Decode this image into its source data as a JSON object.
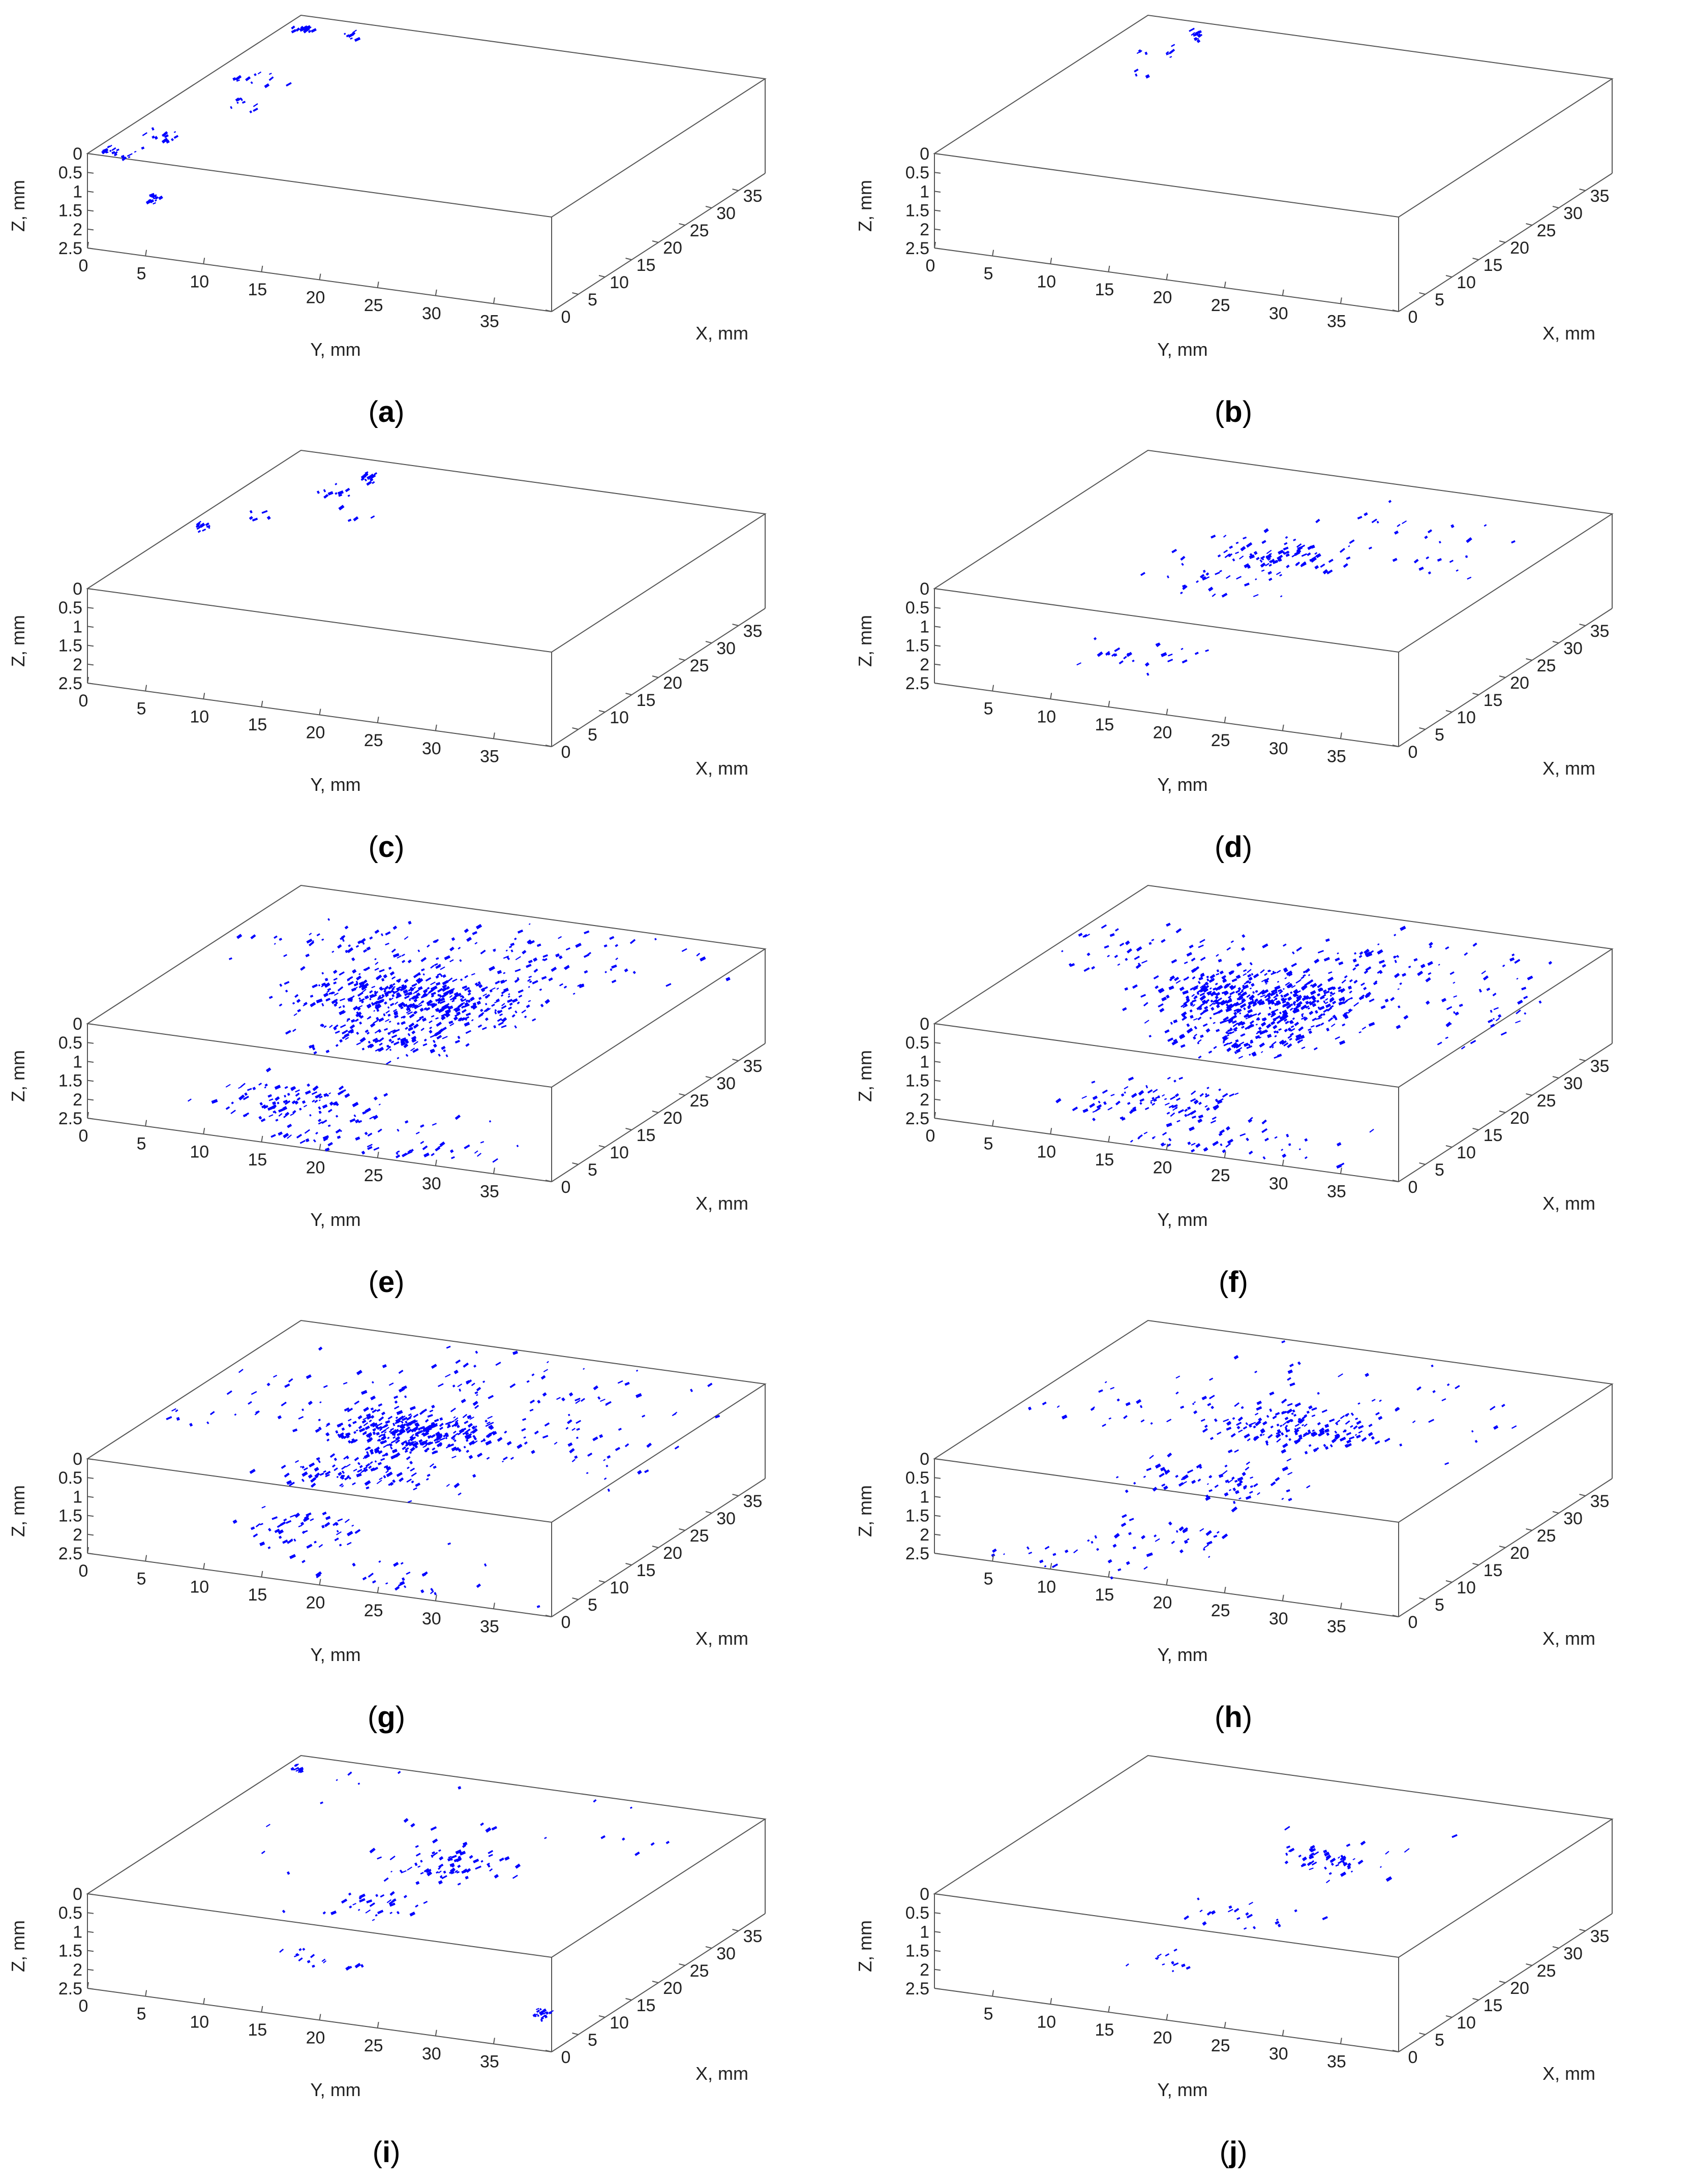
{
  "figure": {
    "panel_labels": [
      "a",
      "b",
      "c",
      "d",
      "e",
      "f",
      "g",
      "h",
      "i",
      "j"
    ]
  },
  "axes": {
    "y_label": "Y, mm",
    "x_label": "X, mm",
    "z_label": "Z, mm",
    "y_ticks": [
      "0",
      "5",
      "10",
      "15",
      "20",
      "25",
      "30",
      "35"
    ],
    "x_ticks": [
      "0",
      "5",
      "10",
      "15",
      "20",
      "25",
      "30",
      "35"
    ],
    "z_ticks": [
      "0",
      "0.5",
      "1",
      "1.5",
      "2",
      "2.5"
    ],
    "box_color": "#555555",
    "text_color": "#222222"
  },
  "chart_data": [
    {
      "panel": "a",
      "type": "scatter",
      "dims": 3,
      "xlabel": "X, mm",
      "ylabel": "Y, mm",
      "zlabel": "Z, mm",
      "xlim": [
        0,
        40
      ],
      "ylim": [
        0,
        40
      ],
      "zlim": [
        0,
        2.5
      ],
      "zdir": "reversed",
      "color": "#0000ff",
      "grid": false,
      "y_tick_values": [
        0,
        5,
        10,
        15,
        20,
        25,
        30,
        35
      ],
      "clusters": [
        {
          "x": 38,
          "y": 1,
          "z": 0.1,
          "spread": 0.5,
          "count": 15
        },
        {
          "x": 38,
          "y": 5,
          "z": 0.05,
          "spread": 0.3,
          "count": 8
        },
        {
          "x": 25,
          "y": 3,
          "z": 0.1,
          "spread": 1.5,
          "count": 12
        },
        {
          "x": 20,
          "y": 4,
          "z": 0.3,
          "spread": 1,
          "count": 10
        },
        {
          "x": 8,
          "y": 2,
          "z": 0.1,
          "spread": 1,
          "count": 12
        },
        {
          "x": 3,
          "y": 1,
          "z": 0.1,
          "spread": 1,
          "count": 20
        },
        {
          "x": 1,
          "y": 5,
          "z": 1,
          "spread": 0.5,
          "count": 15
        }
      ]
    },
    {
      "panel": "b",
      "type": "scatter",
      "dims": 3,
      "xlabel": "X, mm",
      "ylabel": "Y, mm",
      "zlabel": "Z, mm",
      "xlim": [
        0,
        40
      ],
      "ylim": [
        0,
        40
      ],
      "zlim": [
        0,
        2.5
      ],
      "zdir": "reversed",
      "color": "#0000ff",
      "grid": false,
      "y_tick_values": [
        0,
        5,
        10,
        15,
        20,
        25,
        30,
        35
      ],
      "clusters": [
        {
          "x": 38,
          "y": 5,
          "z": 0.05,
          "spread": 0.5,
          "count": 10
        },
        {
          "x": 33,
          "y": 4,
          "z": 0.1,
          "spread": 1,
          "count": 8
        },
        {
          "x": 28,
          "y": 5,
          "z": 0.1,
          "spread": 1,
          "count": 3
        }
      ]
    },
    {
      "panel": "c",
      "type": "scatter",
      "dims": 3,
      "xlabel": "X, mm",
      "ylabel": "Y, mm",
      "zlabel": "Z, mm",
      "xlim": [
        0,
        40
      ],
      "ylim": [
        0,
        40
      ],
      "zlim": [
        0,
        2.5
      ],
      "zdir": "reversed",
      "color": "#0000ff",
      "grid": false,
      "y_tick_values": [
        0,
        5,
        10,
        15,
        20,
        25,
        30,
        35
      ],
      "clusters": [
        {
          "x": 37,
          "y": 7,
          "z": 0.05,
          "spread": 0.5,
          "count": 15
        },
        {
          "x": 33,
          "y": 6,
          "z": 0.1,
          "spread": 1,
          "count": 10
        },
        {
          "x": 25,
          "y": 3,
          "z": 0.1,
          "spread": 1,
          "count": 5
        },
        {
          "x": 20,
          "y": 0.5,
          "z": 0.1,
          "spread": 0.5,
          "count": 10
        },
        {
          "x": 28,
          "y": 10,
          "z": 0.1,
          "spread": 1.5,
          "count": 4
        }
      ]
    },
    {
      "panel": "d",
      "type": "scatter",
      "dims": 3,
      "xlabel": "X, mm",
      "ylabel": "Y, mm",
      "zlabel": "Z, mm",
      "xlim": [
        0,
        40
      ],
      "ylim": [
        0,
        40
      ],
      "zlim": [
        0,
        2.5
      ],
      "zdir": "reversed",
      "color": "#0000ff",
      "grid": false,
      "y_tick_values": [
        5,
        10,
        15,
        20,
        25,
        30,
        35
      ],
      "clusters": [
        {
          "x": 20,
          "y": 20,
          "z": 0.05,
          "spread": 3,
          "count": 80
        },
        {
          "x": 15,
          "y": 17,
          "z": 0.3,
          "spread": 4,
          "count": 30
        },
        {
          "x": 5,
          "y": 14,
          "z": 1.5,
          "spread": 3,
          "count": 25
        },
        {
          "x": 30,
          "y": 25,
          "z": 0.05,
          "spread": 6,
          "count": 20
        },
        {
          "x": 25,
          "y": 32,
          "z": 0.1,
          "spread": 3,
          "count": 10
        }
      ]
    },
    {
      "panel": "e",
      "type": "scatter",
      "dims": 3,
      "xlabel": "X, mm",
      "ylabel": "Y, mm",
      "zlabel": "Z, mm",
      "xlim": [
        0,
        40
      ],
      "ylim": [
        0,
        40
      ],
      "zlim": [
        0,
        2.5
      ],
      "zdir": "reversed",
      "color": "#0000ff",
      "grid": false,
      "y_tick_values": [
        0,
        5,
        10,
        15,
        20,
        25,
        30,
        35
      ],
      "clusters": [
        {
          "x": 18,
          "y": 20,
          "z": 0.05,
          "spread": 5,
          "count": 400
        },
        {
          "x": 12,
          "y": 20,
          "z": 0.5,
          "spread": 4,
          "count": 120
        },
        {
          "x": 5,
          "y": 16,
          "z": 1.8,
          "spread": 4,
          "count": 100
        },
        {
          "x": 30,
          "y": 25,
          "z": 0.05,
          "spread": 7,
          "count": 100
        },
        {
          "x": 28,
          "y": 10,
          "z": 0.1,
          "spread": 6,
          "count": 60
        },
        {
          "x": 2,
          "y": 25,
          "z": 2.2,
          "spread": 6,
          "count": 60
        }
      ]
    },
    {
      "panel": "f",
      "type": "scatter",
      "dims": 3,
      "xlabel": "X, mm",
      "ylabel": "Y, mm",
      "zlabel": "Z, mm",
      "xlim": [
        0,
        40
      ],
      "ylim": [
        0,
        40
      ],
      "zlim": [
        0,
        2.5
      ],
      "zdir": "reversed",
      "color": "#0000ff",
      "grid": false,
      "y_tick_values": [
        0,
        5,
        10,
        15,
        20,
        25,
        30,
        35
      ],
      "clusters": [
        {
          "x": 18,
          "y": 20,
          "z": 0.05,
          "spread": 5,
          "count": 420
        },
        {
          "x": 12,
          "y": 21,
          "z": 0.5,
          "spread": 4,
          "count": 120
        },
        {
          "x": 5,
          "y": 17,
          "z": 1.8,
          "spread": 4,
          "count": 90
        },
        {
          "x": 30,
          "y": 25,
          "z": 0.05,
          "spread": 7,
          "count": 100
        },
        {
          "x": 25,
          "y": 8,
          "z": 0.1,
          "spread": 5,
          "count": 50
        },
        {
          "x": 20,
          "y": 36,
          "z": 0.1,
          "spread": 5,
          "count": 30
        },
        {
          "x": 2,
          "y": 24,
          "z": 2.2,
          "spread": 6,
          "count": 50
        }
      ]
    },
    {
      "panel": "g",
      "type": "scatter",
      "dims": 3,
      "xlabel": "X, mm",
      "ylabel": "Y, mm",
      "zlabel": "Z, mm",
      "xlim": [
        0,
        40
      ],
      "ylim": [
        0,
        40
      ],
      "zlim": [
        0,
        2.5
      ],
      "zdir": "reversed",
      "color": "#0000ff",
      "grid": false,
      "y_tick_values": [
        0,
        5,
        10,
        15,
        20,
        25,
        30,
        35
      ],
      "clusters": [
        {
          "x": 18,
          "y": 20,
          "z": 0.05,
          "spread": 4,
          "count": 300
        },
        {
          "x": 10,
          "y": 19,
          "z": 0.5,
          "spread": 4,
          "count": 100
        },
        {
          "x": 5,
          "y": 16,
          "z": 1.5,
          "spread": 3,
          "count": 50
        },
        {
          "x": 30,
          "y": 22,
          "z": 0.05,
          "spread": 9,
          "count": 90
        },
        {
          "x": 20,
          "y": 32,
          "z": 0.1,
          "spread": 6,
          "count": 40
        },
        {
          "x": 20,
          "y": 8,
          "z": 0.1,
          "spread": 6,
          "count": 40
        },
        {
          "x": 2,
          "y": 25,
          "z": 2.2,
          "spread": 6,
          "count": 30
        }
      ]
    },
    {
      "panel": "h",
      "type": "scatter",
      "dims": 3,
      "xlabel": "X, mm",
      "ylabel": "Y, mm",
      "zlabel": "Z, mm",
      "xlim": [
        0,
        40
      ],
      "ylim": [
        0,
        40
      ],
      "zlim": [
        0,
        2.5
      ],
      "zdir": "reversed",
      "color": "#0000ff",
      "grid": false,
      "y_tick_values": [
        5,
        10,
        15,
        20,
        25,
        30,
        35
      ],
      "clusters": [
        {
          "x": 20,
          "y": 22,
          "z": 0.05,
          "spread": 4,
          "count": 140
        },
        {
          "x": 10,
          "y": 20,
          "z": 0.6,
          "spread": 4,
          "count": 70
        },
        {
          "x": 4,
          "y": 18,
          "z": 1.6,
          "spread": 3,
          "count": 30
        },
        {
          "x": 28,
          "y": 22,
          "z": 0.05,
          "spread": 10,
          "count": 60
        },
        {
          "x": 20,
          "y": 10,
          "z": 0.1,
          "spread": 6,
          "count": 25
        },
        {
          "x": 3,
          "y": 10,
          "z": 2.4,
          "spread": 4,
          "count": 20
        }
      ]
    },
    {
      "panel": "i",
      "type": "scatter",
      "dims": 3,
      "xlabel": "X, mm",
      "ylabel": "Y, mm",
      "zlabel": "Z, mm",
      "xlim": [
        0,
        40
      ],
      "ylim": [
        0,
        40
      ],
      "zlim": [
        0,
        2.5
      ],
      "zdir": "reversed",
      "color": "#0000ff",
      "grid": false,
      "y_tick_values": [
        0,
        5,
        10,
        15,
        20,
        25,
        30,
        35
      ],
      "clusters": [
        {
          "x": 20,
          "y": 22,
          "z": 0.05,
          "spread": 3,
          "count": 70
        },
        {
          "x": 12,
          "y": 19,
          "z": 0.5,
          "spread": 3,
          "count": 30
        },
        {
          "x": 5,
          "y": 17,
          "z": 1.4,
          "spread": 2,
          "count": 15
        },
        {
          "x": 28,
          "y": 20,
          "z": 0.05,
          "spread": 10,
          "count": 30
        },
        {
          "x": 0.5,
          "y": 39,
          "z": 1.5,
          "spread": 0.5,
          "count": 20
        },
        {
          "x": 38,
          "y": 1,
          "z": 0.05,
          "spread": 0.5,
          "count": 10
        }
      ]
    },
    {
      "panel": "j",
      "type": "scatter",
      "dims": 3,
      "xlabel": "X, mm",
      "ylabel": "Y, mm",
      "zlabel": "Z, mm",
      "xlim": [
        0,
        40
      ],
      "ylim": [
        0,
        40
      ],
      "zlim": [
        0,
        2.5
      ],
      "zdir": "reversed",
      "color": "#0000ff",
      "grid": false,
      "y_tick_values": [
        5,
        10,
        15,
        20,
        25,
        30,
        35
      ],
      "clusters": [
        {
          "x": 22,
          "y": 23,
          "z": 0.05,
          "spread": 2.5,
          "count": 50
        },
        {
          "x": 10,
          "y": 21,
          "z": 0.6,
          "spread": 3,
          "count": 20
        },
        {
          "x": 4,
          "y": 18,
          "z": 1.4,
          "spread": 2,
          "count": 12
        },
        {
          "x": 25,
          "y": 30,
          "z": 0.05,
          "spread": 8,
          "count": 6
        }
      ]
    }
  ]
}
